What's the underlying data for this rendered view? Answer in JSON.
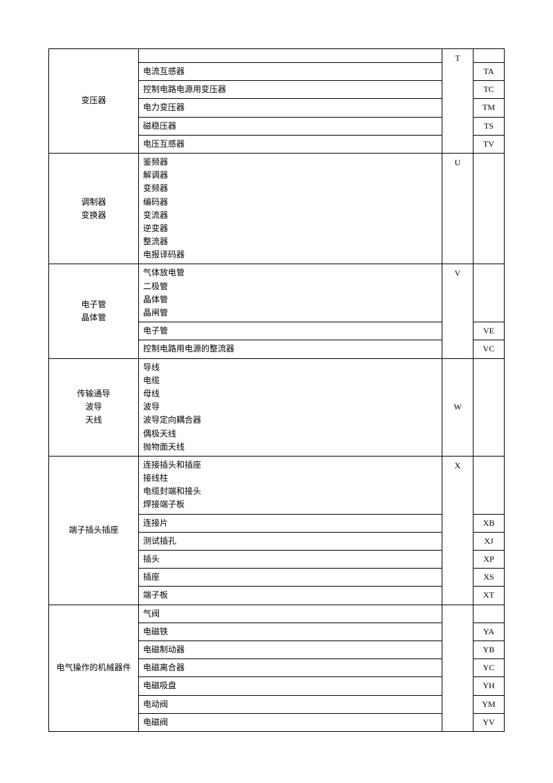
{
  "groups": [
    {
      "category": "变压器",
      "code1": "T",
      "rows": [
        {
          "item": "",
          "code2": "",
          "cb": true
        },
        {
          "item": "电流互感器",
          "code2": "TA"
        },
        {
          "item": "控制电路电源用变压器",
          "code2": "TC"
        },
        {
          "item": "电力变压器",
          "code2": "TM"
        },
        {
          "item": "磁稳压器",
          "code2": "TS"
        },
        {
          "item": "电压互感器",
          "code2": "TV"
        }
      ]
    },
    {
      "category": "调制器\n变换器",
      "code1": "U",
      "rows": [
        {
          "item": "鉴频器\n解调器\n变频器\n编码器\n变流器\n逆变器\n整流器\n电报译码器",
          "code2": "",
          "tall": true
        }
      ]
    },
    {
      "category": "电子管\n晶体管",
      "code1": "V",
      "rows": [
        {
          "item": "气体放电管\n二极管\n晶体管\n晶闸管",
          "code2": "",
          "tall": true,
          "cb": true
        },
        {
          "item": "电子管",
          "code2": "VE"
        },
        {
          "item": "控制电路用电源的整流器",
          "code2": "VC"
        }
      ]
    },
    {
      "category": "传输通导\n波导\n天线",
      "code1": "W",
      "code1_mid": true,
      "rows": [
        {
          "item": "导线\n电缆\n母线\n波导\n波导定向耦合器\n偶极天线\n抛物面天线",
          "code2": "",
          "tall": true
        }
      ]
    },
    {
      "category": "端子插头插座",
      "code1": "X",
      "rows": [
        {
          "item": "连接插头和插座\n接线柱\n电缆封端和接头\n焊接端子板",
          "code2": "",
          "tall": true,
          "cb": true
        },
        {
          "item": "连接片",
          "code2": "XB"
        },
        {
          "item": "测试插孔",
          "code2": "XJ"
        },
        {
          "item": "插头",
          "code2": "XP"
        },
        {
          "item": "插座",
          "code2": "XS"
        },
        {
          "item": "端子板",
          "code2": "XT"
        }
      ]
    },
    {
      "category": "电气操作的机械器件",
      "code1": "",
      "rows": [
        {
          "item": "气阀",
          "code2": "",
          "cb": true
        },
        {
          "item": "电磁铁",
          "code2": "YA"
        },
        {
          "item": "电磁制动器",
          "code2": "YB"
        },
        {
          "item": "电磁离合器",
          "code2": "YC"
        },
        {
          "item": "电磁吸盘",
          "code2": "YH"
        },
        {
          "item": "电动阀",
          "code2": "YM"
        },
        {
          "item": "电磁阀",
          "code2": "YV"
        }
      ]
    }
  ]
}
